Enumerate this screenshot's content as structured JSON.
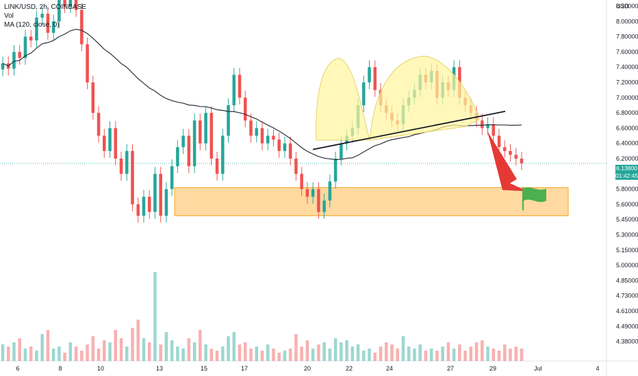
{
  "header": {
    "symbol_line": "LINK/USD, 2h, COINBASE",
    "vol_label": "Vol",
    "ma_label": "MA (120, close, 0)"
  },
  "currency": "USD",
  "current_price": {
    "price": "6.13800",
    "countdown": "01:42:45"
  },
  "colors": {
    "up": "#26a69a",
    "down": "#ef5350",
    "ma": "#2a2e39",
    "zone_fill": "#ffcc80",
    "zone_border": "#f5a623",
    "pattern_fill": "#fff59d",
    "arrow": "#e53935",
    "flag": "#4caf50"
  },
  "chart_data": {
    "type": "candlestick",
    "title": "LINK/USD, 2h, COINBASE",
    "y_ticks": [
      "8.20000",
      "8.00000",
      "7.80000",
      "7.60000",
      "7.40000",
      "7.20000",
      "7.00000",
      "6.80000",
      "6.60000",
      "6.40000",
      "6.20000",
      "6.00000",
      "5.80000",
      "5.60000",
      "5.45000",
      "5.30000",
      "5.15000",
      "5.00000",
      "4.85000",
      "4.73000",
      "4.61000",
      "4.49000",
      "4.38000"
    ],
    "x_ticks": [
      "6",
      "8",
      "10",
      "13",
      "15",
      "17",
      "20",
      "22",
      "24",
      "27",
      "29",
      "Jul",
      "4"
    ],
    "ylim": [
      4.38,
      8.2
    ],
    "ma_period": 120,
    "close_series": [
      7.45,
      7.38,
      7.6,
      7.52,
      7.8,
      7.75,
      8.05,
      8.1,
      7.85,
      8.0,
      8.3,
      8.2,
      8.4,
      8.15,
      7.7,
      7.2,
      6.8,
      6.5,
      6.3,
      6.6,
      6.2,
      6.0,
      6.3,
      5.6,
      5.45,
      5.7,
      5.5,
      6.0,
      5.45,
      5.8,
      6.1,
      6.35,
      6.5,
      6.1,
      6.7,
      6.4,
      6.8,
      6.2,
      6.0,
      6.5,
      6.9,
      7.3,
      7.0,
      6.7,
      6.5,
      6.6,
      6.4,
      6.5,
      6.45,
      6.3,
      6.4,
      6.2,
      6.0,
      5.8,
      5.7,
      5.8,
      5.5,
      5.65,
      5.9,
      6.2,
      6.4,
      6.5,
      6.6,
      6.9,
      7.2,
      7.4,
      7.1,
      6.9,
      6.8,
      6.7,
      6.65,
      6.9,
      7.0,
      7.1,
      7.3,
      7.2,
      7.35,
      7.0,
      7.2,
      7.1,
      7.4,
      7.0,
      6.9,
      6.8,
      6.7,
      6.6,
      6.65,
      6.5,
      6.35,
      6.3,
      6.25,
      6.2,
      6.138
    ],
    "volume": [
      16,
      14,
      18,
      22,
      12,
      14,
      10,
      26,
      30,
      12,
      14,
      8,
      18,
      14,
      10,
      16,
      24,
      12,
      20,
      18,
      30,
      22,
      14,
      32,
      40,
      22,
      18,
      86,
      16,
      28,
      20,
      14,
      12,
      22,
      18,
      30,
      16,
      12,
      10,
      14,
      24,
      28,
      16,
      18,
      12,
      14,
      10,
      16,
      12,
      8,
      10,
      12,
      26,
      14,
      20,
      12,
      16,
      18,
      12,
      22,
      18,
      20,
      14,
      16,
      10,
      12,
      8,
      14,
      18,
      16,
      12,
      24,
      14,
      12,
      16,
      10,
      12,
      10,
      14,
      18,
      12,
      16,
      10,
      14,
      18,
      20,
      14,
      12,
      10,
      16,
      12,
      14,
      12
    ],
    "zone": {
      "low": 5.45,
      "high": 5.82
    },
    "neckline": {
      "from": 6.32,
      "to": 6.82
    },
    "target_price": 5.7
  }
}
